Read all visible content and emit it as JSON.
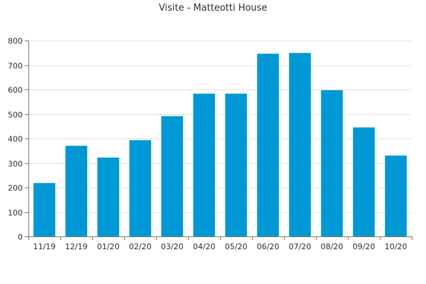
{
  "chart_data": {
    "type": "bar",
    "title": "Visite - Matteotti House",
    "xlabel": "",
    "ylabel": "",
    "categories": [
      "11/19",
      "12/19",
      "01/20",
      "02/20",
      "03/20",
      "04/20",
      "05/20",
      "06/20",
      "07/20",
      "08/20",
      "09/20",
      "10/20"
    ],
    "values": [
      218,
      370,
      322,
      393,
      491,
      583,
      583,
      746,
      749,
      597,
      445,
      330
    ],
    "ylim": [
      0,
      800
    ],
    "yticks": [
      0,
      100,
      200,
      300,
      400,
      500,
      600,
      700,
      800
    ],
    "grid": true,
    "legend": "none",
    "bar_color": "#0098d4"
  }
}
